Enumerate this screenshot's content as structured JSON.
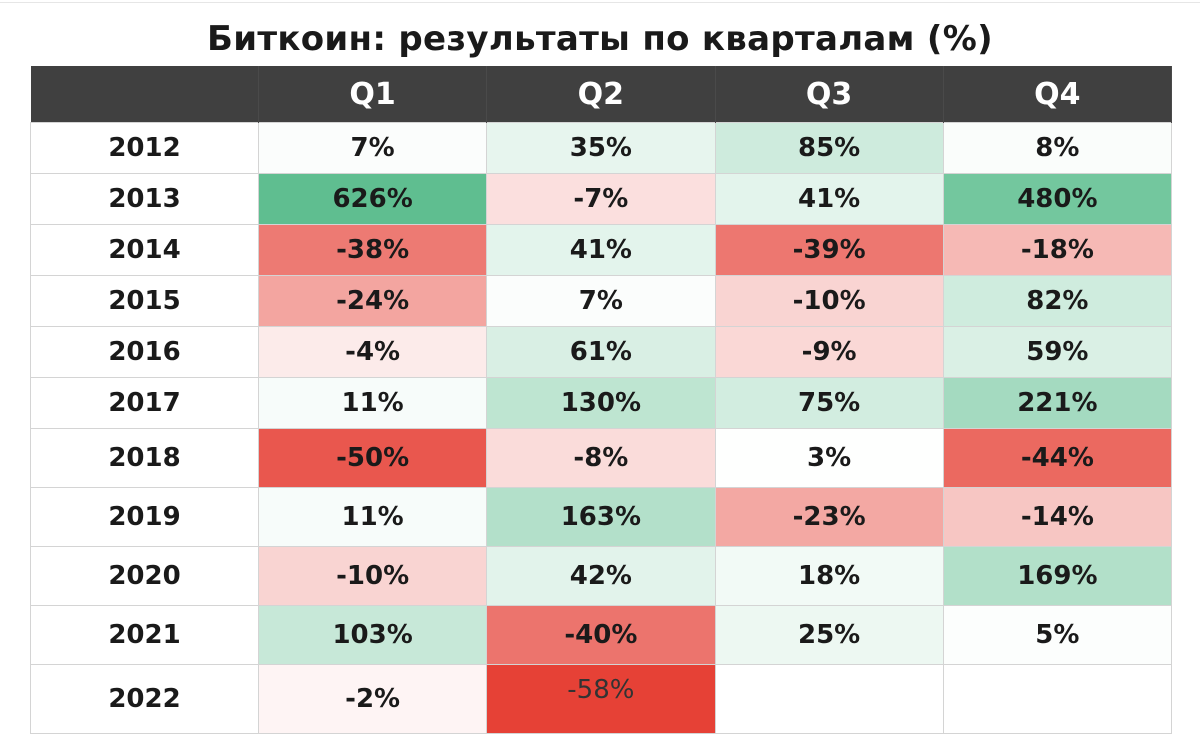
{
  "title": "Биткоин: результаты по кварталам (%)",
  "chart_data": {
    "type": "table",
    "title": "Биткоин: результаты по кварталам (%)",
    "columns": [
      "",
      "Q1",
      "Q2",
      "Q3",
      "Q4"
    ],
    "rows": [
      {
        "year": "2012",
        "cells": [
          "7%",
          "35%",
          "85%",
          "8%"
        ],
        "values": [
          7,
          35,
          85,
          8
        ]
      },
      {
        "year": "2013",
        "cells": [
          "626%",
          "-7%",
          "41%",
          "480%"
        ],
        "values": [
          626,
          -7,
          41,
          480
        ]
      },
      {
        "year": "2014",
        "cells": [
          "-38%",
          "41%",
          "-39%",
          "-18%"
        ],
        "values": [
          -38,
          41,
          -39,
          -18
        ]
      },
      {
        "year": "2015",
        "cells": [
          "-24%",
          "7%",
          "-10%",
          "82%"
        ],
        "values": [
          -24,
          7,
          -10,
          82
        ]
      },
      {
        "year": "2016",
        "cells": [
          "-4%",
          "61%",
          "-9%",
          "59%"
        ],
        "values": [
          -4,
          61,
          -9,
          59
        ]
      },
      {
        "year": "2017",
        "cells": [
          "11%",
          "130%",
          "75%",
          "221%"
        ],
        "values": [
          11,
          130,
          75,
          221
        ]
      },
      {
        "year": "2018",
        "cells": [
          "-50%",
          "-8%",
          "3%",
          "-44%"
        ],
        "values": [
          -50,
          -8,
          3,
          -44
        ]
      },
      {
        "year": "2019",
        "cells": [
          "11%",
          "163%",
          "-23%",
          "-14%"
        ],
        "values": [
          11,
          163,
          -23,
          -14
        ]
      },
      {
        "year": "2020",
        "cells": [
          "-10%",
          "42%",
          "18%",
          "169%"
        ],
        "values": [
          -10,
          42,
          18,
          169
        ]
      },
      {
        "year": "2021",
        "cells": [
          "103%",
          "-40%",
          "25%",
          "5%"
        ],
        "values": [
          103,
          -40,
          25,
          5
        ]
      },
      {
        "year": "2022",
        "cells": [
          "-2%",
          "-58%",
          "",
          ""
        ],
        "values": [
          -2,
          -58,
          null,
          null
        ]
      }
    ],
    "colors": {
      "header_bg": "#404040",
      "positive_strong": "#57bb8a",
      "negative_strong": "#e53d32",
      "neutral": "#ffffff"
    }
  }
}
